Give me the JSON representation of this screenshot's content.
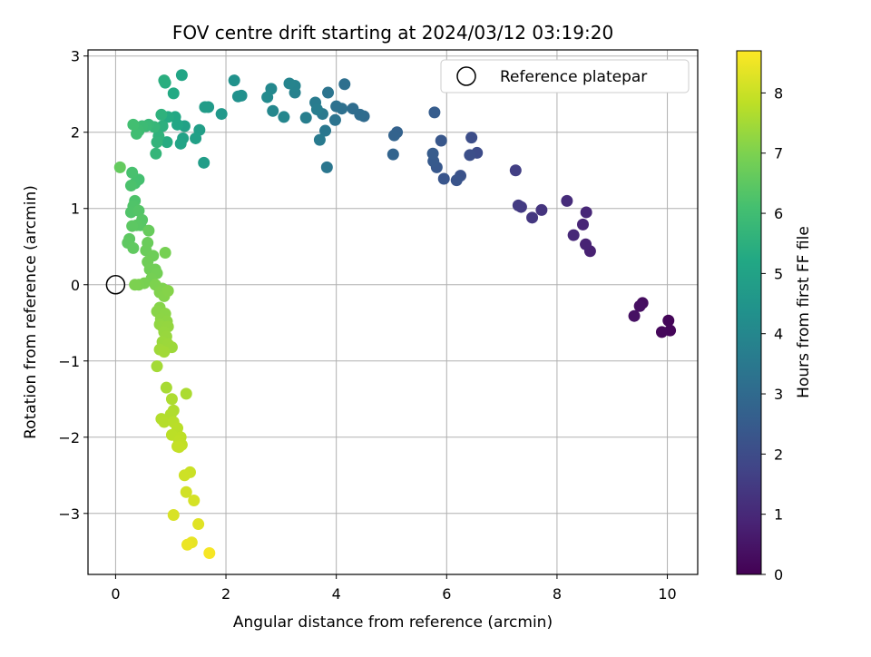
{
  "chart_data": {
    "type": "scatter",
    "title": "FOV centre drift starting at 2024/03/12 03:19:20",
    "xlabel": "Angular distance from reference (arcmin)",
    "ylabel": "Rotation from reference (arcmin)",
    "xlim": [
      -0.5,
      10.55
    ],
    "ylim": [
      -3.8,
      3.08
    ],
    "xticks": [
      0,
      2,
      4,
      6,
      8,
      10
    ],
    "yticks": [
      -3,
      -2,
      -1,
      0,
      1,
      2,
      3
    ],
    "grid": true,
    "legend": {
      "position": "top-right",
      "entries": [
        "Reference platepar"
      ]
    },
    "colorbar": {
      "label": "Hours from first FF file",
      "min": 0,
      "max": 8.7,
      "ticks": [
        0,
        1,
        2,
        3,
        4,
        5,
        6,
        7,
        8
      ],
      "colormap": [
        "#440154",
        "#482475",
        "#414487",
        "#355f8d",
        "#2a788e",
        "#21918c",
        "#22a884",
        "#44bf70",
        "#7ad151",
        "#bddf26",
        "#fde725"
      ]
    },
    "reference": {
      "x": 0,
      "y": 0
    },
    "points": [
      [
        10.02,
        -0.47,
        0.1
      ],
      [
        10.05,
        -0.6,
        0.12
      ],
      [
        9.9,
        -0.62,
        0.15
      ],
      [
        9.55,
        -0.24,
        0.3
      ],
      [
        9.5,
        -0.28,
        0.35
      ],
      [
        9.4,
        -0.41,
        0.4
      ],
      [
        8.6,
        0.44,
        0.8
      ],
      [
        8.52,
        0.53,
        0.85
      ],
      [
        8.47,
        0.79,
        0.9
      ],
      [
        8.53,
        0.95,
        0.95
      ],
      [
        8.3,
        0.65,
        1.0
      ],
      [
        8.18,
        1.1,
        1.1
      ],
      [
        7.72,
        0.98,
        1.3
      ],
      [
        7.55,
        0.88,
        1.4
      ],
      [
        7.35,
        1.02,
        1.45
      ],
      [
        7.3,
        1.04,
        1.5
      ],
      [
        7.25,
        1.5,
        1.6
      ],
      [
        6.55,
        1.73,
        2.0
      ],
      [
        6.45,
        1.93,
        2.05
      ],
      [
        6.42,
        1.7,
        2.1
      ],
      [
        6.25,
        1.43,
        2.2
      ],
      [
        6.18,
        1.37,
        2.25
      ],
      [
        5.95,
        1.39,
        2.3
      ],
      [
        5.9,
        1.89,
        2.35
      ],
      [
        5.82,
        1.54,
        2.4
      ],
      [
        5.76,
        1.62,
        2.45
      ],
      [
        5.75,
        1.72,
        2.5
      ],
      [
        5.78,
        2.26,
        2.55
      ],
      [
        5.1,
        2.0,
        2.7
      ],
      [
        5.05,
        1.96,
        2.75
      ],
      [
        5.03,
        1.71,
        2.8
      ],
      [
        4.5,
        2.21,
        3.0
      ],
      [
        4.43,
        2.23,
        3.05
      ],
      [
        4.3,
        2.31,
        3.1
      ],
      [
        4.15,
        2.63,
        3.15
      ],
      [
        4.1,
        2.31,
        3.2
      ],
      [
        4.0,
        2.34,
        3.25
      ],
      [
        3.98,
        2.16,
        3.3
      ],
      [
        3.85,
        2.52,
        3.35
      ],
      [
        3.83,
        1.54,
        3.4
      ],
      [
        3.8,
        2.02,
        3.45
      ],
      [
        3.75,
        2.24,
        3.5
      ],
      [
        3.7,
        1.9,
        3.55
      ],
      [
        3.62,
        2.39,
        3.6
      ],
      [
        3.65,
        2.3,
        3.65
      ],
      [
        3.45,
        2.19,
        3.7
      ],
      [
        3.25,
        2.52,
        3.8
      ],
      [
        3.25,
        2.61,
        3.85
      ],
      [
        3.15,
        2.64,
        3.9
      ],
      [
        3.05,
        2.2,
        3.95
      ],
      [
        2.85,
        2.28,
        4.0
      ],
      [
        2.82,
        2.57,
        4.05
      ],
      [
        2.75,
        2.46,
        4.1
      ],
      [
        2.28,
        2.48,
        4.3
      ],
      [
        2.22,
        2.47,
        4.35
      ],
      [
        2.15,
        2.68,
        4.4
      ],
      [
        1.92,
        2.24,
        4.6
      ],
      [
        1.68,
        2.33,
        4.7
      ],
      [
        1.62,
        2.33,
        4.75
      ],
      [
        1.6,
        1.6,
        4.8
      ],
      [
        1.52,
        2.03,
        4.85
      ],
      [
        1.45,
        1.92,
        4.9
      ],
      [
        1.25,
        2.08,
        4.95
      ],
      [
        1.22,
        1.92,
        5.0
      ],
      [
        1.18,
        1.85,
        5.05
      ],
      [
        1.2,
        2.75,
        5.1
      ],
      [
        1.12,
        2.1,
        5.15
      ],
      [
        1.08,
        2.2,
        5.2
      ],
      [
        1.05,
        2.51,
        5.25
      ],
      [
        0.95,
        2.2,
        5.3
      ],
      [
        0.93,
        1.87,
        5.35
      ],
      [
        0.9,
        2.65,
        5.4
      ],
      [
        0.88,
        2.68,
        5.45
      ],
      [
        0.85,
        2.08,
        5.5
      ],
      [
        0.83,
        2.23,
        5.55
      ],
      [
        0.78,
        1.95,
        5.6
      ],
      [
        0.75,
        1.87,
        5.65
      ],
      [
        0.73,
        1.72,
        5.7
      ],
      [
        0.7,
        2.07,
        5.75
      ],
      [
        0.6,
        2.1,
        5.8
      ],
      [
        0.55,
        2.08,
        5.85
      ],
      [
        0.48,
        2.08,
        5.9
      ],
      [
        0.42,
        2.02,
        5.95
      ],
      [
        0.38,
        1.98,
        6.0
      ],
      [
        0.32,
        2.1,
        6.05
      ],
      [
        0.42,
        1.38,
        6.1
      ],
      [
        0.35,
        1.33,
        6.12
      ],
      [
        0.3,
        1.47,
        6.15
      ],
      [
        0.28,
        1.3,
        6.2
      ],
      [
        0.35,
        1.1,
        6.25
      ],
      [
        0.32,
        1.03,
        6.28
      ],
      [
        0.28,
        0.95,
        6.3
      ],
      [
        0.42,
        0.97,
        6.35
      ],
      [
        0.48,
        0.85,
        6.4
      ],
      [
        0.45,
        0.78,
        6.42
      ],
      [
        0.38,
        0.78,
        6.45
      ],
      [
        0.3,
        0.77,
        6.48
      ],
      [
        0.25,
        0.6,
        6.5
      ],
      [
        0.22,
        0.55,
        6.52
      ],
      [
        0.32,
        0.48,
        6.55
      ],
      [
        0.08,
        1.54,
        6.6
      ],
      [
        0.6,
        0.71,
        6.65
      ],
      [
        0.58,
        0.55,
        6.7
      ],
      [
        0.55,
        0.45,
        6.72
      ],
      [
        0.68,
        0.38,
        6.75
      ],
      [
        0.58,
        0.3,
        6.78
      ],
      [
        0.62,
        0.2,
        6.8
      ],
      [
        0.72,
        0.2,
        6.82
      ],
      [
        0.75,
        0.15,
        6.85
      ],
      [
        0.65,
        0.08,
        6.88
      ],
      [
        0.9,
        0.42,
        6.9
      ],
      [
        0.52,
        0.02,
        6.92
      ],
      [
        0.42,
        0.0,
        6.95
      ],
      [
        0.35,
        0.0,
        6.98
      ],
      [
        0.72,
        0.0,
        7.0
      ],
      [
        0.85,
        -0.05,
        7.02
      ],
      [
        0.8,
        -0.1,
        7.05
      ],
      [
        0.88,
        -0.15,
        7.08
      ],
      [
        0.95,
        -0.08,
        7.1
      ],
      [
        0.8,
        -0.3,
        7.12
      ],
      [
        0.75,
        -0.35,
        7.15
      ],
      [
        0.9,
        -0.38,
        7.18
      ],
      [
        0.82,
        -0.45,
        7.2
      ],
      [
        0.93,
        -0.48,
        7.22
      ],
      [
        0.8,
        -0.52,
        7.25
      ],
      [
        0.85,
        -0.55,
        7.28
      ],
      [
        0.95,
        -0.55,
        7.3
      ],
      [
        0.88,
        -0.62,
        7.32
      ],
      [
        0.92,
        -0.68,
        7.35
      ],
      [
        0.85,
        -0.75,
        7.38
      ],
      [
        0.95,
        -0.78,
        7.4
      ],
      [
        1.02,
        -0.82,
        7.42
      ],
      [
        0.8,
        -0.85,
        7.45
      ],
      [
        0.88,
        -0.88,
        7.48
      ],
      [
        0.75,
        -1.07,
        7.5
      ],
      [
        0.92,
        -1.35,
        7.55
      ],
      [
        1.28,
        -1.43,
        7.6
      ],
      [
        1.02,
        -1.5,
        7.62
      ],
      [
        1.05,
        -1.65,
        7.65
      ],
      [
        1.0,
        -1.7,
        7.68
      ],
      [
        0.83,
        -1.76,
        7.7
      ],
      [
        0.88,
        -1.8,
        7.72
      ],
      [
        1.05,
        -1.8,
        7.75
      ],
      [
        1.12,
        -1.88,
        7.78
      ],
      [
        1.02,
        -1.97,
        7.8
      ],
      [
        1.18,
        -2.0,
        7.82
      ],
      [
        1.15,
        -2.05,
        7.85
      ],
      [
        1.2,
        -2.1,
        7.88
      ],
      [
        1.12,
        -2.12,
        7.9
      ],
      [
        1.15,
        -2.13,
        7.92
      ],
      [
        1.35,
        -2.46,
        8.0
      ],
      [
        1.25,
        -2.5,
        8.05
      ],
      [
        1.28,
        -2.72,
        8.1
      ],
      [
        1.42,
        -2.83,
        8.15
      ],
      [
        1.05,
        -3.02,
        8.2
      ],
      [
        1.5,
        -3.14,
        8.3
      ],
      [
        1.38,
        -3.38,
        8.4
      ],
      [
        1.3,
        -3.41,
        8.45
      ],
      [
        1.7,
        -3.52,
        8.6
      ]
    ]
  }
}
